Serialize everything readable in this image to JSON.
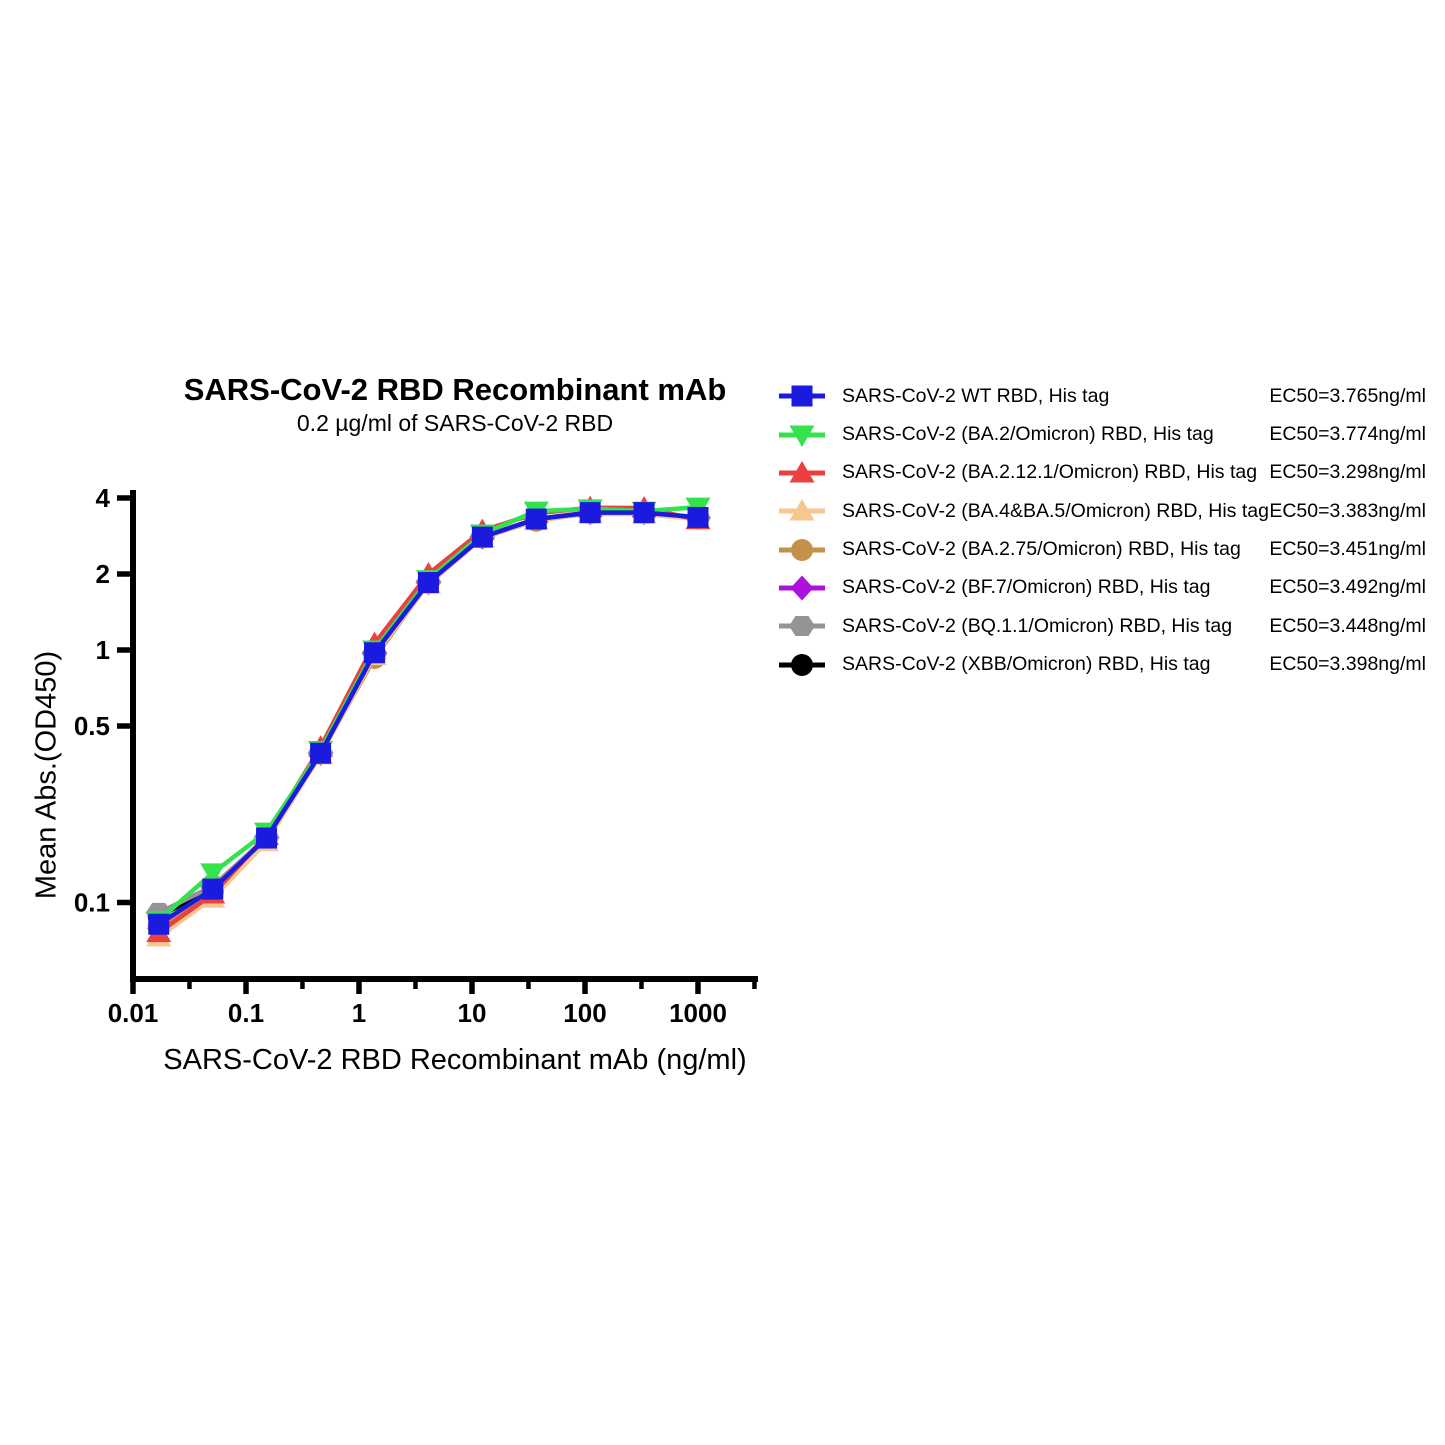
{
  "figure": {
    "background_color": "#ffffff",
    "axis_color": "#000000"
  },
  "chart_data": {
    "type": "line",
    "title": "SARS-CoV-2 RBD Recombinant mAb",
    "subtitle": "0.2 µg/ml of SARS-CoV-2 RBD",
    "xlabel": "SARS-CoV-2 RBD Recombinant mAb (ng/ml)",
    "ylabel": "Mean Abs.(OD450)",
    "x_scale": "log",
    "y_scale": "log",
    "xlim": [
      0.01,
      3160
    ],
    "ylim": [
      0.05,
      4.4
    ],
    "grid": false,
    "legend_position": "right",
    "x_ticks": [
      {
        "value": 0.01,
        "label": "0.01"
      },
      {
        "value": 0.1,
        "label": "0.1"
      },
      {
        "value": 1,
        "label": "1"
      },
      {
        "value": 10,
        "label": "10"
      },
      {
        "value": 100,
        "label": "100"
      },
      {
        "value": 1000,
        "label": "1000"
      }
    ],
    "x_minor_ticks": [
      0.0316,
      0.316,
      3.16,
      31.6,
      316,
      3160
    ],
    "y_ticks": [
      {
        "value": 4,
        "label": "4"
      },
      {
        "value": 2,
        "label": "2"
      },
      {
        "value": 1,
        "label": "1"
      },
      {
        "value": 0.5,
        "label": "0.5"
      },
      {
        "value": 0.1,
        "label": "0.1"
      }
    ],
    "x": [
      0.0169,
      0.0508,
      0.152,
      0.457,
      1.372,
      4.115,
      12.35,
      37.04,
      111.1,
      333.3,
      1000
    ],
    "series": [
      {
        "id": "wt",
        "name": "SARS-CoV-2 WT RBD, His tag",
        "ec50": "EC50=3.765ng/ml",
        "color": "#1b1be0",
        "marker": "square",
        "values": [
          0.082,
          0.113,
          0.18,
          0.39,
          0.975,
          1.85,
          2.8,
          3.3,
          3.5,
          3.5,
          3.35
        ]
      },
      {
        "id": "ba2",
        "name": "SARS-CoV-2 (BA.2/Omicron) RBD, His tag",
        "ec50": "EC50=3.774ng/ml",
        "color": "#35e14d",
        "marker": "triangle-down",
        "values": [
          0.085,
          0.131,
          0.19,
          0.4,
          1.0,
          1.9,
          2.88,
          3.55,
          3.62,
          3.55,
          3.68
        ]
      },
      {
        "id": "ba2121",
        "name": "SARS-CoV-2 (BA.2.12.1/Omicron) RBD, His tag",
        "ec50": "EC50=3.298ng/ml",
        "color": "#ea4040",
        "marker": "triangle-up",
        "values": [
          0.076,
          0.108,
          0.184,
          0.412,
          1.06,
          2.0,
          2.97,
          3.48,
          3.66,
          3.65,
          3.28
        ]
      },
      {
        "id": "ba4ba5",
        "name": "SARS-CoV-2 (BA.4&BA.5/Omicron) RBD, His tag",
        "ec50": "EC50=3.383ng/ml",
        "color": "#f6c78f",
        "marker": "triangle-up",
        "values": [
          0.073,
          0.104,
          0.174,
          0.384,
          0.95,
          1.82,
          2.77,
          3.27,
          3.46,
          3.45,
          3.3
        ]
      },
      {
        "id": "ba275",
        "name": "SARS-CoV-2 (BA.2.75/Omicron) RBD, His tag",
        "ec50": "EC50=3.451ng/ml",
        "color": "#c3914a",
        "marker": "circle",
        "values": [
          0.08,
          0.11,
          0.178,
          0.388,
          0.93,
          1.84,
          2.79,
          3.25,
          3.48,
          3.48,
          3.33
        ]
      },
      {
        "id": "bf7",
        "name": "SARS-CoV-2 (BF.7/Omicron) RBD, His tag",
        "ec50": "EC50=3.492ng/ml",
        "color": "#ab10dd",
        "marker": "diamond",
        "values": [
          0.079,
          0.111,
          0.179,
          0.389,
          0.965,
          1.85,
          2.8,
          3.3,
          3.5,
          3.5,
          3.35
        ]
      },
      {
        "id": "bq11",
        "name": "SARS-CoV-2 (BQ.1.1/Omicron) RBD, His tag",
        "ec50": "EC50=3.448ng/ml",
        "color": "#949494",
        "marker": "hexagon",
        "values": [
          0.091,
          0.116,
          0.181,
          0.391,
          0.97,
          1.86,
          2.81,
          3.31,
          3.51,
          3.49,
          3.34
        ]
      },
      {
        "id": "xbb",
        "name": "SARS-CoV-2 (XBB/Omicron) RBD, His tag",
        "ec50": "EC50=3.398ng/ml",
        "color": "#000000",
        "marker": "circle",
        "values": [
          0.088,
          0.114,
          0.18,
          0.39,
          0.972,
          1.85,
          2.8,
          3.3,
          3.5,
          3.5,
          3.35
        ]
      }
    ]
  }
}
